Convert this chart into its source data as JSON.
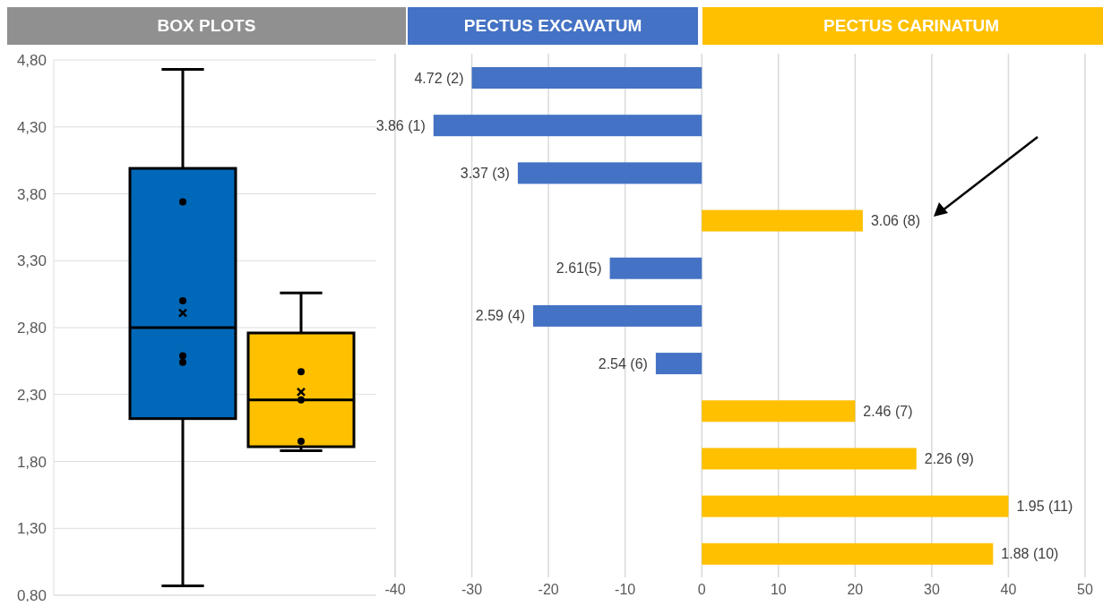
{
  "chart_data": [
    {
      "type": "box",
      "title": "BOX PLOTS",
      "categories": [
        null
      ],
      "series": [
        {
          "color": "#0068b8",
          "boxes": [
            {
              "low": 0.87,
              "q1": 2.12,
              "median": 2.8,
              "q3": 3.99,
              "high": 4.73,
              "mean": 2.91,
              "outliers": [
                3.74,
                3.0,
                2.59,
                2.54
              ]
            }
          ]
        },
        {
          "color": "#ffc000",
          "boxes": [
            {
              "low": 1.88,
              "q1": 1.91,
              "median": 2.26,
              "q3": 2.76,
              "high": 3.06,
              "mean": 2.32,
              "outliers": [
                2.47,
                2.26,
                1.95
              ]
            }
          ]
        }
      ],
      "ylim": [
        0.8,
        4.8
      ],
      "yticks": [
        {
          "value": 0.8,
          "label": "0,80"
        },
        {
          "value": 1.3,
          "label": "1,30"
        },
        {
          "value": 1.8,
          "label": "1,80"
        },
        {
          "value": 2.3,
          "label": "2,30"
        },
        {
          "value": 2.8,
          "label": "2,80"
        },
        {
          "value": 3.3,
          "label": "3,30"
        },
        {
          "value": 3.8,
          "label": "3,80"
        },
        {
          "value": 4.3,
          "label": "4,30"
        },
        {
          "value": 4.8,
          "label": "4,80"
        }
      ],
      "grid": "y",
      "tick_labels": "y"
    },
    {
      "type": "bar",
      "orientation": "horizontal",
      "stacked": true,
      "categories": [
        "4.72 (2)",
        "3.86 (1)",
        "3.37 (3)",
        "3.06 (8)",
        "2.61(5)",
        "2.59 (4)",
        "2.54 (6)",
        "2.46 (7)",
        "2.26 (9)",
        "1.95 (11)",
        "1.88 (10)"
      ],
      "series": [
        {
          "name": "PECTUS EXCAVATUM",
          "color": "#4472c4",
          "values": [
            -30,
            -35,
            -24,
            null,
            -12,
            -22,
            -6,
            null,
            null,
            null,
            null
          ]
        },
        {
          "name": "PECTUS CARINATUM",
          "color": "#ffc000",
          "values": [
            null,
            null,
            null,
            21,
            null,
            null,
            null,
            20,
            28,
            40,
            38
          ]
        }
      ],
      "xlim": [
        -40,
        50
      ],
      "xticks": [
        -40,
        -30,
        -20,
        -10,
        0,
        10,
        20,
        30,
        40,
        50
      ],
      "grid": "x",
      "legend": "top"
    }
  ]
}
